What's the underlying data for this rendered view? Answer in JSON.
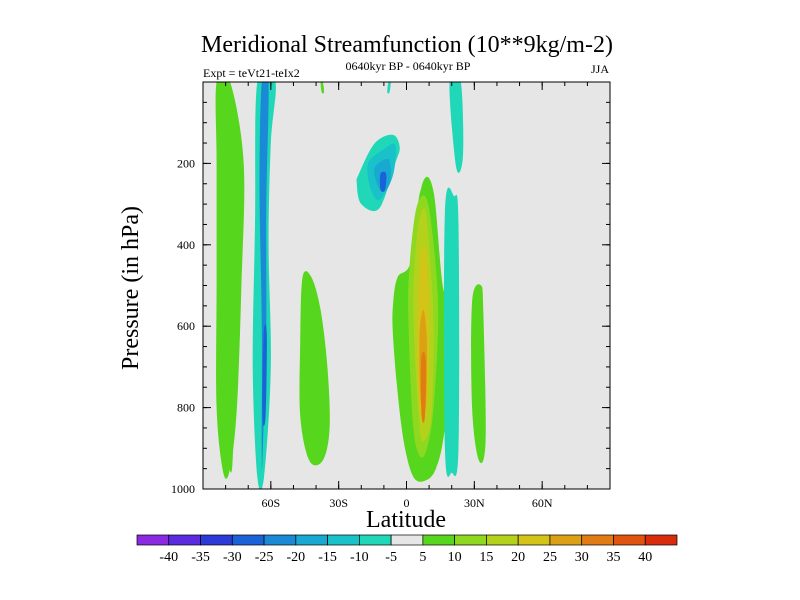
{
  "chart_data": {
    "type": "heatmap",
    "title": "Meridional Streamfunction (10**9kg/m-2)",
    "subtitle_left": "Expt = teVt21-teIx2",
    "subtitle_center": "0640kyr BP - 0640kyr BP",
    "subtitle_right": "JJA",
    "xlabel": "Latitude",
    "ylabel": "Pressure (in hPa)",
    "xlim": [
      -90,
      90
    ],
    "ylim": [
      1000,
      0
    ],
    "x_ticks": [
      {
        "value": -60,
        "label": "60S"
      },
      {
        "value": -30,
        "label": "30S"
      },
      {
        "value": 0,
        "label": "0"
      },
      {
        "value": 30,
        "label": "30N"
      },
      {
        "value": 60,
        "label": "60N"
      }
    ],
    "y_ticks": [
      {
        "value": 200,
        "label": "200"
      },
      {
        "value": 400,
        "label": "400"
      },
      {
        "value": 600,
        "label": "600"
      },
      {
        "value": 800,
        "label": "800"
      },
      {
        "value": 1000,
        "label": "1000"
      }
    ],
    "background_color": "#e6e6e6",
    "colorbar": {
      "labels": [
        "-40",
        "-35",
        "-30",
        "-25",
        "-20",
        "-15",
        "-10",
        "-5",
        "5",
        "10",
        "15",
        "20",
        "25",
        "30",
        "35",
        "40"
      ],
      "colors": [
        "#8a2be2",
        "#5b2be0",
        "#2c3ad8",
        "#1a62d8",
        "#1a8ad6",
        "#18a8d2",
        "#18c2c8",
        "#20d8b8",
        "#e6e6e6",
        "#56d61c",
        "#8ed820",
        "#b4d21c",
        "#d4c418",
        "#dca014",
        "#e07c12",
        "#e05410",
        "#d82c0c"
      ]
    },
    "regions": [
      {
        "value": 8,
        "lat": [
          -82,
          -80,
          -78,
          -77,
          -76,
          -77,
          -79,
          -82,
          -82,
          -82
        ],
        "p": [
          0,
          0,
          150,
          400,
          700,
          940,
          930,
          800,
          500,
          200
        ]
      },
      {
        "value": 5,
        "lat": [
          -84,
          -78,
          -72,
          -73,
          -75,
          -78,
          -81,
          -84,
          -84,
          -84
        ],
        "p": [
          0,
          0,
          200,
          500,
          800,
          950,
          960,
          800,
          500,
          200
        ]
      },
      {
        "value": -7,
        "lat": [
          -66,
          -58,
          -60,
          -61,
          -60,
          -63,
          -66,
          -68,
          -67
        ],
        "p": [
          0,
          0,
          150,
          400,
          700,
          970,
          970,
          700,
          350
        ]
      },
      {
        "value": -22,
        "lat": [
          -64,
          -61,
          -62,
          -62,
          -63,
          -64,
          -64,
          -65
        ],
        "p": [
          0,
          0,
          300,
          600,
          800,
          950,
          600,
          250
        ]
      },
      {
        "value": -27,
        "lat": [
          -63.2,
          -61.8,
          -62.3,
          -63.7
        ],
        "p": [
          620,
          620,
          820,
          820
        ]
      },
      {
        "value": 5,
        "lat": [
          -46,
          -42,
          -38,
          -35,
          -34,
          -37,
          -43,
          -47,
          -47
        ],
        "p": [
          480,
          480,
          560,
          700,
          850,
          930,
          930,
          820,
          640
        ]
      },
      {
        "value": -6,
        "lat": [
          -21,
          -14,
          -6,
          -3,
          -5,
          -12,
          -20,
          -22
        ],
        "p": [
          225,
          150,
          130,
          160,
          200,
          310,
          300,
          250
        ]
      },
      {
        "value": -12,
        "lat": [
          -17,
          -10,
          -5,
          -6,
          -12,
          -16
        ],
        "p": [
          200,
          165,
          155,
          230,
          290,
          260
        ]
      },
      {
        "value": -20,
        "lat": [
          -14,
          -8,
          -7,
          -10,
          -13
        ],
        "p": [
          210,
          190,
          240,
          270,
          250
        ]
      },
      {
        "value": -26,
        "lat": [
          -11.5,
          -9,
          -9.5,
          -11.5
        ],
        "p": [
          225,
          225,
          265,
          265
        ]
      },
      {
        "value": 5,
        "lat": [
          -4,
          2,
          7,
          12,
          16,
          21,
          17,
          13,
          8,
          3,
          -1,
          -4,
          -6,
          -6
        ],
        "p": [
          480,
          440,
          250,
          270,
          500,
          600,
          850,
          950,
          980,
          970,
          890,
          760,
          620,
          550
        ]
      },
      {
        "value": 8,
        "lat": [
          -2,
          2,
          6,
          10,
          13,
          17,
          14,
          10,
          6,
          3,
          1,
          -2
        ],
        "p": [
          500,
          450,
          270,
          290,
          500,
          600,
          850,
          930,
          960,
          940,
          840,
          650
        ]
      },
      {
        "value": 12,
        "lat": [
          1,
          4,
          8,
          11,
          14,
          12,
          9,
          6,
          3,
          1
        ],
        "p": [
          480,
          320,
          280,
          350,
          560,
          800,
          900,
          920,
          850,
          620
        ]
      },
      {
        "value": 18,
        "lat": [
          3,
          5,
          8,
          10,
          12,
          11,
          8,
          6,
          4
        ],
        "p": [
          520,
          360,
          310,
          400,
          600,
          820,
          880,
          860,
          700
        ]
      },
      {
        "value": 24,
        "lat": [
          4.8,
          6.5,
          8.5,
          10,
          9.5,
          7.5,
          5.5
        ],
        "p": [
          600,
          420,
          420,
          560,
          760,
          840,
          780
        ]
      },
      {
        "value": 29,
        "lat": [
          5.8,
          7.5,
          9,
          8.5,
          6.2
        ],
        "p": [
          620,
          560,
          640,
          800,
          780
        ]
      },
      {
        "value": 33,
        "lat": [
          6.5,
          8.5,
          8.2,
          6.7
        ],
        "p": [
          680,
          680,
          820,
          820
        ]
      },
      {
        "value": -6,
        "lat": [
          17,
          21,
          23,
          23,
          20,
          17
        ],
        "p": [
          320,
          280,
          350,
          900,
          960,
          900
        ]
      },
      {
        "value": 6,
        "lat": [
          29,
          33,
          34,
          35,
          32,
          29
        ],
        "p": [
          540,
          500,
          570,
          880,
          930,
          800
        ]
      },
      {
        "value": -6,
        "lat": [
          19,
          24,
          25,
          22
        ],
        "p": [
          0,
          0,
          180,
          210
        ]
      },
      {
        "value": 6,
        "lat": [
          -38,
          -37,
          -36.5,
          -37.5
        ],
        "p": [
          0,
          0,
          25,
          25
        ]
      },
      {
        "value": -6,
        "lat": [
          -8,
          -7,
          -7.5,
          -8.5
        ],
        "p": [
          0,
          0,
          25,
          25
        ]
      }
    ]
  }
}
